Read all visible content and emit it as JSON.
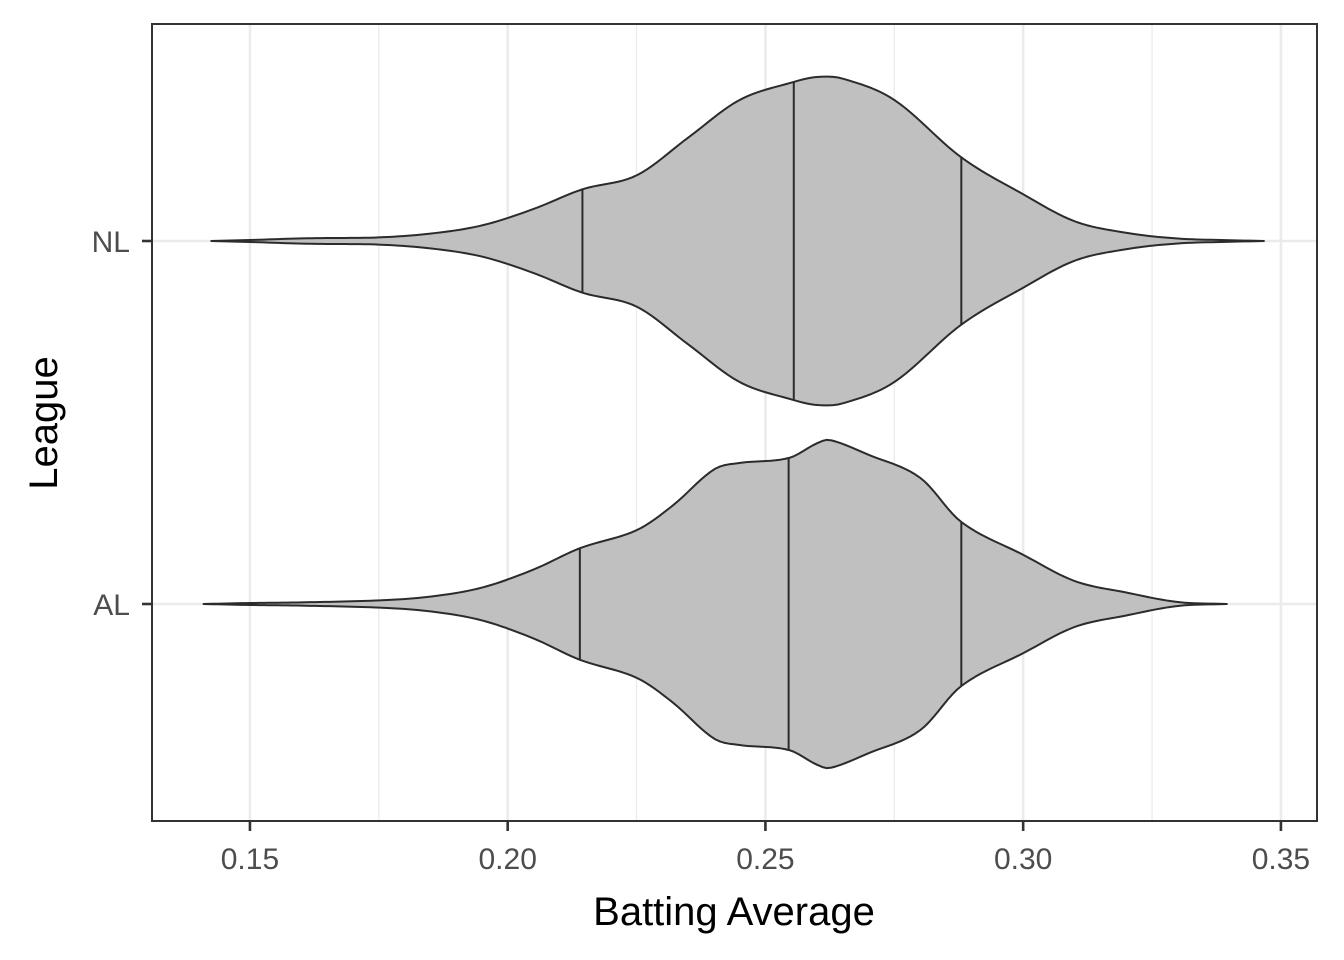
{
  "chart_data": {
    "type": "violin",
    "orientation": "horizontal",
    "xlabel": "Batting Average",
    "ylabel": "League",
    "xlim": [
      0.131,
      0.357
    ],
    "x_major_ticks": [
      0.15,
      0.2,
      0.25,
      0.3,
      0.35
    ],
    "x_tick_labels": [
      "0.15",
      "0.20",
      "0.25",
      "0.30",
      "0.35"
    ],
    "x_minor_ticks": [
      0.175,
      0.225,
      0.275,
      0.325
    ],
    "categories": [
      "NL",
      "AL"
    ],
    "fill_color": "#c0c0c0",
    "outline_color": "#2b2b2b",
    "grid": true,
    "series": [
      {
        "name": "NL",
        "range": [
          0.1425,
          0.3467
        ],
        "quantiles": [
          0.2145,
          0.2555,
          0.288
        ],
        "density_profile": [
          [
            0.1425,
            0.0
          ],
          [
            0.15,
            0.006
          ],
          [
            0.16,
            0.016
          ],
          [
            0.165,
            0.018
          ],
          [
            0.175,
            0.022
          ],
          [
            0.185,
            0.045
          ],
          [
            0.195,
            0.095
          ],
          [
            0.205,
            0.195
          ],
          [
            0.2145,
            0.315
          ],
          [
            0.225,
            0.4
          ],
          [
            0.235,
            0.63
          ],
          [
            0.245,
            0.86
          ],
          [
            0.2555,
            0.97
          ],
          [
            0.26,
            1.0
          ],
          [
            0.265,
            0.99
          ],
          [
            0.275,
            0.86
          ],
          [
            0.288,
            0.51
          ],
          [
            0.3,
            0.285
          ],
          [
            0.31,
            0.12
          ],
          [
            0.32,
            0.05
          ],
          [
            0.33,
            0.015
          ],
          [
            0.34,
            0.005
          ],
          [
            0.3467,
            0.0
          ]
        ]
      },
      {
        "name": "AL",
        "range": [
          0.141,
          0.3395
        ],
        "quantiles": [
          0.214,
          0.2545,
          0.288
        ],
        "density_profile": [
          [
            0.141,
            0.0
          ],
          [
            0.15,
            0.006
          ],
          [
            0.16,
            0.01
          ],
          [
            0.175,
            0.022
          ],
          [
            0.185,
            0.045
          ],
          [
            0.195,
            0.1
          ],
          [
            0.205,
            0.21
          ],
          [
            0.214,
            0.34
          ],
          [
            0.225,
            0.45
          ],
          [
            0.232,
            0.6
          ],
          [
            0.24,
            0.82
          ],
          [
            0.245,
            0.86
          ],
          [
            0.2545,
            0.89
          ],
          [
            0.26,
            0.98
          ],
          [
            0.2625,
            1.0
          ],
          [
            0.27,
            0.91
          ],
          [
            0.28,
            0.77
          ],
          [
            0.288,
            0.5
          ],
          [
            0.3,
            0.3
          ],
          [
            0.31,
            0.14
          ],
          [
            0.32,
            0.07
          ],
          [
            0.33,
            0.012
          ],
          [
            0.3395,
            0.0
          ]
        ]
      }
    ]
  }
}
